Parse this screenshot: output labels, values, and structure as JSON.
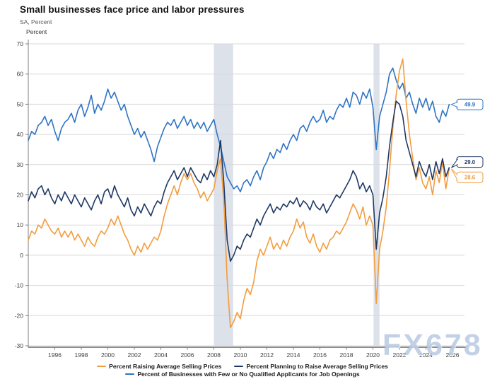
{
  "title": "Small businesses face price and labor pressures",
  "subtitle": "SA, Percent",
  "watermark": "FX678",
  "colors": {
    "orange": "#F39C3D",
    "navy": "#1F3864",
    "blue": "#2F74C4",
    "gridline": "#D9D9D9",
    "axis": "#7F7F7F",
    "recession_band": "#DCE1EA",
    "tick_label": "#404040",
    "watermark": "#9EB5D7"
  },
  "chart_data": {
    "type": "line",
    "title": "Small businesses face price and labor pressures",
    "subtitle": "SA, Percent",
    "xlabel": "",
    "ylabel": "Percent",
    "ylim": [
      -30,
      70
    ],
    "yticks": [
      70,
      60,
      50,
      40,
      30,
      20,
      10,
      0,
      -10,
      -20,
      -30
    ],
    "xlim": [
      1994,
      2026
    ],
    "xticks": [
      1996,
      1998,
      2000,
      2002,
      2004,
      2006,
      2008,
      2010,
      2012,
      2014,
      2016,
      2018,
      2020,
      2022,
      2024,
      2026
    ],
    "grid": true,
    "legend_position": "bottom",
    "x_start": 1994.0,
    "x_step": 0.25,
    "recession_bands": [
      [
        2008.0,
        2009.45
      ],
      [
        2020.05,
        2020.5
      ]
    ],
    "series": [
      {
        "name": "Percent Raising Average Selling Prices",
        "color": "#F39C3D",
        "end_label": "28.6",
        "values": [
          5,
          8,
          7,
          10,
          9,
          12,
          10,
          8,
          7,
          9,
          6,
          8,
          6,
          8,
          5,
          7,
          5,
          3,
          6,
          4,
          3,
          6,
          8,
          7,
          9,
          12,
          10,
          13,
          10,
          7,
          5,
          2,
          0,
          3,
          1,
          4,
          2,
          4,
          6,
          5,
          8,
          13,
          17,
          20,
          23,
          20,
          24,
          27,
          25,
          27,
          24,
          22,
          19,
          21,
          18,
          20,
          22,
          28,
          32,
          18,
          -8,
          -24,
          -22,
          -19,
          -21,
          -15,
          -11,
          -13,
          -9,
          -2,
          2,
          0,
          3,
          6,
          2,
          4,
          2,
          5,
          3,
          6,
          8,
          12,
          9,
          11,
          6,
          4,
          7,
          3,
          1,
          4,
          2,
          5,
          6,
          8,
          7,
          9,
          11,
          14,
          17,
          15,
          12,
          16,
          10,
          13,
          10,
          -16,
          2,
          8,
          16,
          28,
          42,
          53,
          61,
          65,
          51,
          40,
          32,
          25,
          29,
          24,
          22,
          26,
          20,
          28,
          24,
          31,
          22,
          28.6
        ]
      },
      {
        "name": "Percent Planning to Raise Average Selling Prices",
        "color": "#1F3864",
        "end_label": "29.0",
        "values": [
          18,
          21,
          19,
          22,
          23,
          20,
          22,
          19,
          17,
          20,
          18,
          21,
          19,
          17,
          20,
          18,
          16,
          19,
          17,
          15,
          18,
          20,
          17,
          21,
          22,
          19,
          23,
          20,
          18,
          16,
          19,
          15,
          13,
          16,
          14,
          17,
          15,
          13,
          16,
          18,
          17,
          21,
          24,
          26,
          28,
          25,
          27,
          29,
          26,
          29,
          27,
          25,
          24,
          27,
          25,
          28,
          26,
          30,
          38,
          24,
          5,
          -2,
          0,
          3,
          2,
          5,
          7,
          6,
          9,
          12,
          10,
          13,
          15,
          17,
          14,
          16,
          15,
          17,
          16,
          18,
          17,
          19,
          16,
          18,
          17,
          15,
          18,
          16,
          15,
          17,
          14,
          16,
          18,
          20,
          19,
          21,
          23,
          25,
          28,
          26,
          22,
          24,
          21,
          23,
          20,
          2,
          14,
          19,
          26,
          36,
          44,
          51,
          50,
          46,
          38,
          34,
          30,
          26,
          31,
          28,
          26,
          30,
          25,
          31,
          27,
          32,
          26,
          29
        ]
      },
      {
        "name": "Percent of Businesses with Few or No Qualified Applicants for Job Openings",
        "color": "#2F74C4",
        "end_label": "49.9",
        "values": [
          38,
          41,
          40,
          43,
          44,
          46,
          43,
          45,
          41,
          38,
          42,
          44,
          45,
          47,
          44,
          48,
          50,
          46,
          49,
          53,
          47,
          50,
          48,
          51,
          55,
          52,
          54,
          51,
          48,
          50,
          46,
          43,
          40,
          42,
          39,
          41,
          38,
          35,
          31,
          36,
          39,
          42,
          44,
          43,
          45,
          42,
          44,
          46,
          43,
          45,
          42,
          44,
          42,
          44,
          41,
          43,
          45,
          40,
          36,
          31,
          26,
          24,
          22,
          23,
          21,
          24,
          25,
          23,
          26,
          28,
          25,
          29,
          31,
          34,
          32,
          35,
          34,
          37,
          35,
          38,
          40,
          38,
          42,
          43,
          41,
          44,
          46,
          44,
          45,
          48,
          44,
          46,
          45,
          48,
          50,
          49,
          52,
          49,
          54,
          53,
          50,
          54,
          52,
          55,
          49,
          35,
          46,
          50,
          54,
          60,
          62,
          58,
          55,
          57,
          52,
          54,
          50,
          47,
          52,
          49,
          52,
          48,
          51,
          46,
          44,
          48,
          46,
          49.9
        ]
      }
    ]
  }
}
